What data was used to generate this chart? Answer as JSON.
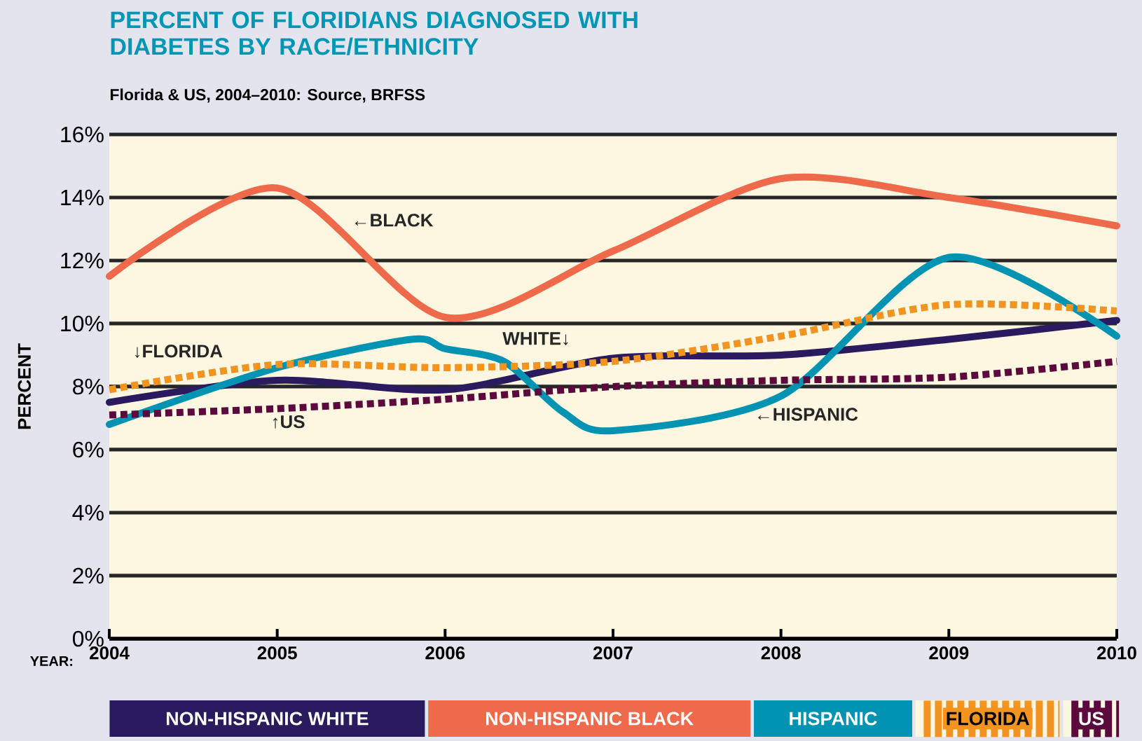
{
  "chart_data": {
    "type": "line",
    "title": "PERCENT OF FLORIDIANS DIAGNOSED WITH DIABETES BY RACE/ETHNICITY",
    "subtitle": "Florida & US, 2004–2010: Source, BRFSS",
    "xlabel": "YEAR:",
    "ylabel": "PERCENT",
    "x": [
      2004,
      2005,
      2006,
      2007,
      2008,
      2009,
      2010
    ],
    "series": [
      {
        "name": "NON-HISPANIC WHITE",
        "color": "#2a1a5e",
        "values": [
          7.5,
          8.2,
          7.9,
          8.9,
          9.0,
          9.5,
          10.1
        ]
      },
      {
        "name": "NON-HISPANIC BLACK",
        "color": "#ef6a4a",
        "values": [
          11.5,
          14.3,
          10.2,
          12.3,
          14.6,
          14.0,
          13.1
        ]
      },
      {
        "name": "HISPANIC",
        "color": "#0093b2",
        "x": [
          2004,
          2005,
          2005.8,
          2006,
          2006.35,
          2006.7,
          2007,
          2008,
          2009,
          2010
        ],
        "values": [
          6.8,
          8.6,
          9.5,
          9.2,
          8.8,
          7.2,
          6.6,
          7.7,
          12.1,
          9.6
        ]
      },
      {
        "name": "FLORIDA",
        "color": "#f39420",
        "line_style": "dotted",
        "values": [
          7.9,
          8.7,
          8.6,
          8.8,
          9.6,
          10.6,
          10.4
        ]
      },
      {
        "name": "US",
        "color": "#5c0a3e",
        "line_style": "dotted",
        "values": [
          7.1,
          7.3,
          7.6,
          8.0,
          8.2,
          8.3,
          8.8
        ]
      }
    ],
    "xlim": [
      2004,
      2010
    ],
    "xticks": [
      2004,
      2005,
      2006,
      2007,
      2008,
      2009,
      2010
    ],
    "ylim": [
      0,
      16
    ],
    "yticks": [
      {
        "value": 0,
        "label": "0%"
      },
      {
        "value": 2,
        "label": "2%"
      },
      {
        "value": 4,
        "label": "4%"
      },
      {
        "value": 6,
        "label": "6%"
      },
      {
        "value": 8,
        "label": "8%"
      },
      {
        "value": 10,
        "label": "10%"
      },
      {
        "value": 12,
        "label": "12%"
      },
      {
        "value": 14,
        "label": "14%"
      },
      {
        "value": 16,
        "label": "16%"
      }
    ],
    "grid": "y",
    "legend": "bottom",
    "line_style": "solid",
    "annotations": [
      "←BLACK",
      "↓FLORIDA",
      "WHITE↓",
      "↑US",
      "←HISPANIC"
    ]
  }
}
